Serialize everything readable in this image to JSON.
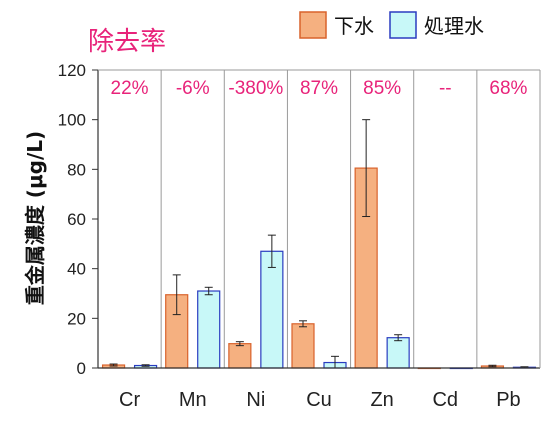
{
  "chart_data": {
    "type": "bar",
    "title": "除去率",
    "ylabel": "重金属濃度 (μg/L)",
    "xlabel": "",
    "ylim": [
      0,
      120
    ],
    "yticks": [
      0,
      20,
      40,
      60,
      80,
      100,
      120
    ],
    "categories": [
      "Cr",
      "Mn",
      "Ni",
      "Cu",
      "Zn",
      "Cd",
      "Pb"
    ],
    "removal_rates": [
      "22%",
      "-6%",
      "-380%",
      "87%",
      "85%",
      "--",
      "68%"
    ],
    "series": [
      {
        "name": "下水",
        "values": [
          1.2,
          29.5,
          9.8,
          17.8,
          80.5,
          0,
          0.8
        ],
        "errors": [
          0.4,
          8,
          0.8,
          1.2,
          19.5,
          0,
          0.3
        ]
      },
      {
        "name": "処理水",
        "values": [
          1.0,
          31.0,
          47.0,
          2.2,
          12.2,
          0,
          0.3
        ],
        "errors": [
          0.3,
          1.5,
          6.5,
          2.5,
          1.2,
          0,
          0.2
        ]
      }
    ],
    "colors": {
      "series0_fill": "#f5b080",
      "series0_stroke": "#d9622b",
      "series1_fill": "#c8f8f8",
      "series1_stroke": "#2a3cc0",
      "title": "#e8237a",
      "grid": "#9a9a9a"
    },
    "grid": true,
    "legend": "top-right"
  }
}
